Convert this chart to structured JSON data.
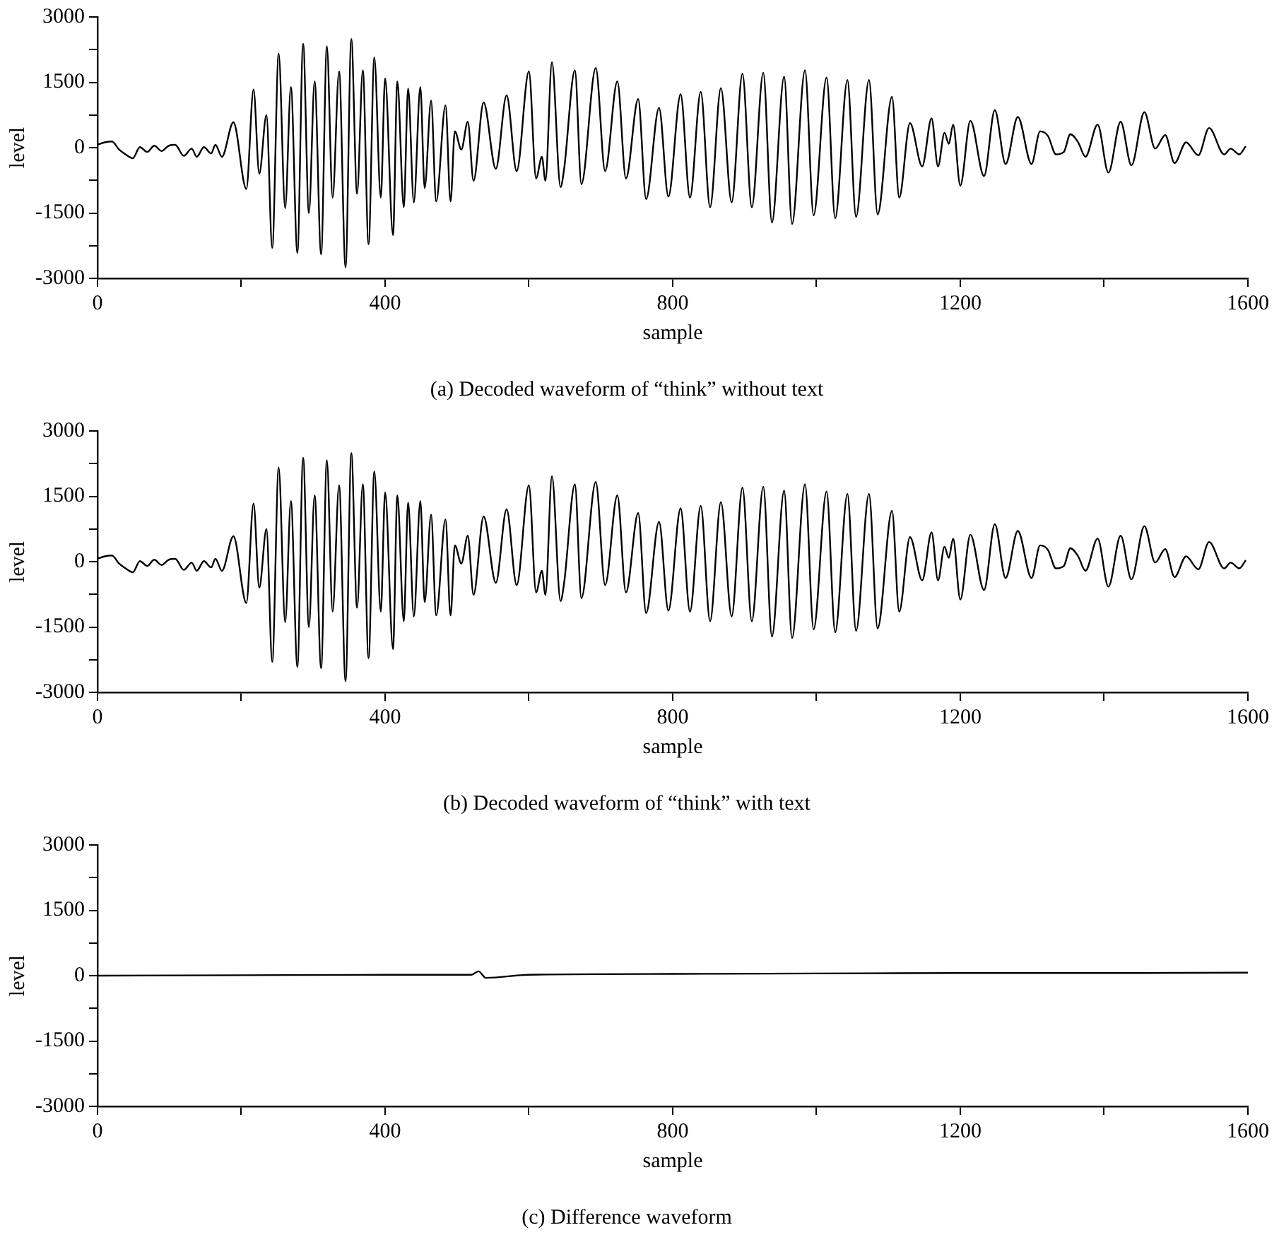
{
  "chart_data": [
    {
      "type": "line",
      "title": "(a) Decoded waveform of “think” without text",
      "xlabel": "sample",
      "ylabel": "level",
      "xlim": [
        0,
        1600
      ],
      "ylim": [
        -3000,
        3000
      ],
      "xticks": [
        0,
        {
          "value": 200,
          "label": null
        },
        400,
        {
          "value": 600,
          "label": null
        },
        800,
        {
          "value": 1000,
          "label": null
        },
        1200,
        {
          "value": 1400,
          "label": null
        },
        1600
      ],
      "yticks": [
        -3000,
        {
          "value": -2250,
          "label": null
        },
        -1500,
        {
          "value": -750,
          "label": null
        },
        0,
        {
          "value": 750,
          "label": null
        },
        1500,
        {
          "value": 2250,
          "label": null
        },
        3000
      ],
      "grid": false,
      "legend": false,
      "marker": "none",
      "line_style": "solid",
      "series": [
        {
          "color": "#000000",
          "x": [
            0,
            10,
            20,
            30,
            39,
            49,
            59,
            69,
            79,
            89,
            99,
            108,
            120,
            131,
            138,
            148,
            158,
            164,
            173,
            189,
            207,
            217,
            225,
            235,
            243,
            252,
            261,
            269,
            278,
            286,
            294,
            302,
            311,
            319,
            327,
            336,
            345,
            353,
            361,
            369,
            377,
            385,
            394,
            400,
            411,
            417,
            426,
            432,
            440,
            449,
            455,
            464,
            471,
            484,
            491,
            497,
            506,
            515,
            523,
            537,
            554,
            569,
            583,
            600,
            610,
            618,
            623,
            632,
            644,
            649,
            664,
            673,
            693,
            706,
            723,
            735,
            752,
            763,
            781,
            794,
            811,
            824,
            839,
            852,
            867,
            882,
            897,
            910,
            926,
            938,
            955,
            966,
            984,
            996,
            1014,
            1026,
            1043,
            1055,
            1073,
            1085,
            1105,
            1115,
            1130,
            1147,
            1160,
            1169,
            1178,
            1184,
            1190,
            1200,
            1214,
            1233,
            1248,
            1263,
            1280,
            1299,
            1311,
            1322,
            1333,
            1344,
            1353,
            1364,
            1374,
            1391,
            1406,
            1423,
            1438,
            1456,
            1471,
            1485,
            1498,
            1514,
            1531,
            1546,
            1567,
            1576,
            1588,
            1597
          ],
          "values": [
            66,
            121,
            143,
            -44,
            -154,
            -243,
            11,
            -99,
            44,
            -77,
            44,
            66,
            -188,
            -22,
            -210,
            11,
            -132,
            66,
            -210,
            585,
            -949,
            1335,
            -596,
            750,
            -2305,
            2162,
            -1390,
            1390,
            -2416,
            2383,
            -1500,
            1522,
            -2449,
            2327,
            -1147,
            1754,
            -2746,
            2493,
            -1059,
            1776,
            -2217,
            2074,
            -1147,
            1588,
            -2007,
            1522,
            -1368,
            1357,
            -1257,
            1390,
            -927,
            1081,
            -1235,
            971,
            -1235,
            375,
            -44,
            596,
            -761,
            1037,
            -485,
            1202,
            -540,
            1754,
            -706,
            -210,
            -761,
            1963,
            -904,
            -485,
            1776,
            -838,
            1831,
            -540,
            1522,
            -706,
            1114,
            -1180,
            915,
            -1125,
            1224,
            -1147,
            1280,
            -1368,
            1368,
            -1257,
            1699,
            -1368,
            1721,
            -1721,
            1632,
            -1754,
            1776,
            -1555,
            1610,
            -1621,
            1555,
            -1588,
            1555,
            -1533,
            1169,
            -1147,
            563,
            -430,
            673,
            -430,
            342,
            88,
            529,
            -871,
            618,
            -651,
            860,
            -375,
            706,
            -375,
            375,
            265,
            -154,
            -99,
            309,
            121,
            -210,
            529,
            -574,
            596,
            -408,
            816,
            -22,
            287,
            -353,
            121,
            -176,
            452,
            -154,
            -22,
            -154,
            33
          ]
        }
      ]
    },
    {
      "type": "line",
      "title": "(b) Decoded waveform of “think” with text",
      "xlabel": "sample",
      "ylabel": "level",
      "xlim": [
        0,
        1600
      ],
      "ylim": [
        -3000,
        3000
      ],
      "xticks": [
        0,
        {
          "value": 200,
          "label": null
        },
        400,
        {
          "value": 600,
          "label": null
        },
        800,
        {
          "value": 1000,
          "label": null
        },
        1200,
        {
          "value": 1400,
          "label": null
        },
        1600
      ],
      "yticks": [
        -3000,
        {
          "value": -2250,
          "label": null
        },
        -1500,
        {
          "value": -750,
          "label": null
        },
        0,
        {
          "value": 750,
          "label": null
        },
        1500,
        {
          "value": 2250,
          "label": null
        },
        3000
      ],
      "grid": false,
      "legend": false,
      "marker": "none",
      "line_style": "solid",
      "series": [
        {
          "color": "#000000",
          "x": [
            0,
            10,
            20,
            30,
            39,
            49,
            59,
            69,
            79,
            89,
            99,
            108,
            120,
            131,
            138,
            148,
            158,
            164,
            173,
            189,
            207,
            217,
            225,
            235,
            243,
            252,
            261,
            269,
            278,
            286,
            294,
            302,
            311,
            319,
            327,
            336,
            345,
            353,
            361,
            369,
            377,
            385,
            394,
            400,
            411,
            417,
            426,
            432,
            440,
            449,
            455,
            464,
            471,
            484,
            491,
            497,
            506,
            515,
            523,
            537,
            554,
            569,
            583,
            600,
            610,
            618,
            623,
            632,
            644,
            649,
            664,
            673,
            693,
            706,
            723,
            735,
            752,
            763,
            781,
            794,
            811,
            824,
            839,
            852,
            867,
            882,
            897,
            910,
            926,
            938,
            955,
            966,
            984,
            996,
            1014,
            1026,
            1043,
            1055,
            1073,
            1085,
            1105,
            1115,
            1130,
            1147,
            1160,
            1169,
            1178,
            1184,
            1190,
            1200,
            1214,
            1233,
            1248,
            1263,
            1280,
            1299,
            1311,
            1322,
            1333,
            1344,
            1353,
            1364,
            1374,
            1391,
            1406,
            1423,
            1438,
            1456,
            1471,
            1485,
            1498,
            1514,
            1531,
            1546,
            1567,
            1576,
            1588,
            1597
          ],
          "values": [
            66,
            121,
            143,
            -44,
            -154,
            -243,
            11,
            -99,
            44,
            -77,
            44,
            66,
            -188,
            -22,
            -210,
            11,
            -132,
            66,
            -210,
            585,
            -949,
            1335,
            -596,
            750,
            -2305,
            2162,
            -1390,
            1390,
            -2416,
            2383,
            -1500,
            1522,
            -2449,
            2327,
            -1147,
            1754,
            -2746,
            2493,
            -1059,
            1776,
            -2217,
            2074,
            -1147,
            1588,
            -2007,
            1522,
            -1368,
            1357,
            -1257,
            1390,
            -927,
            1081,
            -1235,
            971,
            -1235,
            375,
            -44,
            596,
            -761,
            1037,
            -485,
            1202,
            -540,
            1754,
            -706,
            -210,
            -761,
            1963,
            -904,
            -485,
            1776,
            -838,
            1831,
            -540,
            1522,
            -706,
            1114,
            -1180,
            915,
            -1125,
            1224,
            -1147,
            1280,
            -1368,
            1368,
            -1257,
            1699,
            -1368,
            1721,
            -1721,
            1632,
            -1754,
            1776,
            -1555,
            1610,
            -1621,
            1555,
            -1588,
            1555,
            -1533,
            1169,
            -1147,
            563,
            -430,
            673,
            -430,
            342,
            88,
            529,
            -871,
            618,
            -651,
            860,
            -375,
            706,
            -375,
            375,
            265,
            -154,
            -99,
            309,
            121,
            -210,
            529,
            -574,
            596,
            -408,
            816,
            -22,
            287,
            -353,
            121,
            -176,
            452,
            -154,
            -22,
            -154,
            33
          ]
        }
      ]
    },
    {
      "type": "line",
      "title": "(c) Difference waveform",
      "xlabel": "sample",
      "ylabel": "level",
      "xlim": [
        0,
        1600
      ],
      "ylim": [
        -3000,
        3000
      ],
      "xticks": [
        0,
        {
          "value": 200,
          "label": null
        },
        400,
        {
          "value": 600,
          "label": null
        },
        800,
        {
          "value": 1000,
          "label": null
        },
        1200,
        {
          "value": 1400,
          "label": null
        },
        1600
      ],
      "yticks": [
        -3000,
        {
          "value": -2250,
          "label": null
        },
        -1500,
        {
          "value": -750,
          "label": null
        },
        0,
        {
          "value": 750,
          "label": null
        },
        1500,
        {
          "value": 2250,
          "label": null
        },
        3000
      ],
      "grid": false,
      "legend": false,
      "marker": "none",
      "line_style": "solid",
      "series": [
        {
          "color": "#000000",
          "x": [
            0,
            200,
            400,
            520,
            530,
            540,
            600,
            800,
            1000,
            1200,
            1400,
            1600
          ],
          "values": [
            0,
            10,
            20,
            20,
            100,
            -50,
            20,
            40,
            50,
            60,
            60,
            70
          ]
        }
      ]
    }
  ]
}
